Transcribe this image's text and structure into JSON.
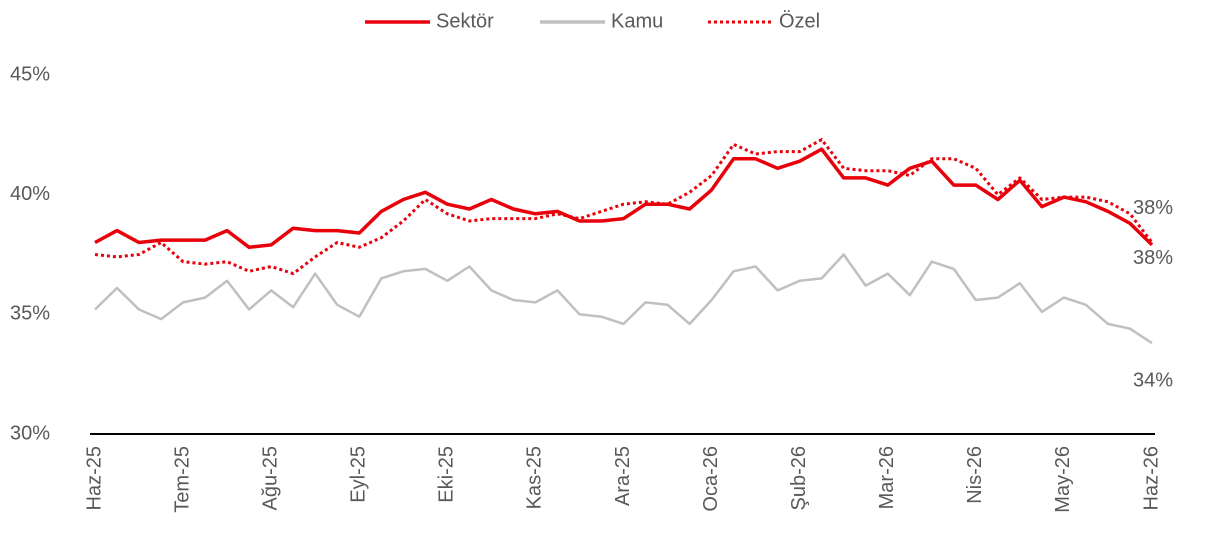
{
  "chart_data": {
    "type": "line",
    "categories": [
      "Haz-25",
      null,
      null,
      null,
      "Tem-25",
      null,
      null,
      null,
      "Ağu-25",
      null,
      null,
      null,
      "Eyl-25",
      null,
      null,
      null,
      "Eki-25",
      null,
      null,
      null,
      "Kas-25",
      null,
      null,
      null,
      "Ara-25",
      null,
      null,
      null,
      "Oca-26",
      null,
      null,
      null,
      "Şub-26",
      null,
      null,
      null,
      "Mar-26",
      null,
      null,
      null,
      "Nis-26",
      null,
      null,
      null,
      "May-26",
      null,
      null,
      null,
      "Haz-26"
    ],
    "ylim": [
      30,
      45
    ],
    "yticks": [
      {
        "value": 30,
        "label": "30%"
      },
      {
        "value": 35,
        "label": "35%"
      },
      {
        "value": 40,
        "label": "40%"
      },
      {
        "value": 45,
        "label": "45%"
      }
    ],
    "legend": "top",
    "series": [
      {
        "name": "Sektör",
        "color": "#e8000b",
        "style": "solid",
        "values": [
          38.0,
          38.5,
          38.0,
          38.1,
          38.1,
          38.1,
          38.5,
          37.8,
          37.9,
          38.6,
          38.5,
          38.5,
          38.4,
          39.3,
          39.8,
          40.1,
          39.6,
          39.4,
          39.8,
          39.4,
          39.2,
          39.3,
          38.9,
          38.9,
          39.0,
          39.6,
          39.6,
          39.4,
          40.2,
          41.5,
          41.5,
          41.1,
          41.4,
          41.9,
          40.7,
          40.7,
          40.4,
          41.1,
          41.4,
          40.4,
          40.4,
          39.8,
          40.6,
          39.5,
          39.9,
          39.7,
          39.3,
          38.8,
          37.9
        ],
        "value_labels": [
          null,
          null,
          null,
          null,
          null,
          null,
          null,
          null,
          null,
          null,
          null,
          null,
          null,
          null,
          null,
          null,
          null,
          null,
          null,
          null,
          null,
          null,
          null,
          null,
          null,
          null,
          null,
          null,
          null,
          null,
          null,
          null,
          null,
          null,
          null,
          null,
          null,
          null,
          null,
          null,
          null,
          null,
          null,
          null,
          null,
          null,
          null,
          null,
          "38%"
        ]
      },
      {
        "name": "Kamu",
        "color": "#c0c0c0",
        "style": "solid",
        "values": [
          35.2,
          36.1,
          35.2,
          34.8,
          35.5,
          35.7,
          36.4,
          35.2,
          36.0,
          35.3,
          36.7,
          35.4,
          34.9,
          36.5,
          36.8,
          36.9,
          36.4,
          37.0,
          36.0,
          35.6,
          35.5,
          36.0,
          35.0,
          34.9,
          34.6,
          35.5,
          35.4,
          34.6,
          35.6,
          36.8,
          37.0,
          36.0,
          36.4,
          36.5,
          37.5,
          36.2,
          36.7,
          35.8,
          37.2,
          36.9,
          35.6,
          35.7,
          36.3,
          35.1,
          35.7,
          35.4,
          34.6,
          34.4,
          33.8
        ],
        "value_labels": [
          null,
          null,
          null,
          null,
          null,
          null,
          null,
          null,
          null,
          null,
          null,
          null,
          null,
          null,
          null,
          null,
          null,
          null,
          null,
          null,
          null,
          null,
          null,
          null,
          null,
          null,
          null,
          null,
          null,
          null,
          null,
          null,
          null,
          null,
          null,
          null,
          null,
          null,
          null,
          null,
          null,
          null,
          null,
          null,
          null,
          null,
          null,
          null,
          "34%"
        ]
      },
      {
        "name": "Özel",
        "color": "#e8000b",
        "style": "dotted",
        "values": [
          37.5,
          37.4,
          37.5,
          38.0,
          37.2,
          37.1,
          37.2,
          36.8,
          37.0,
          36.7,
          37.4,
          38.0,
          37.8,
          38.2,
          38.9,
          39.8,
          39.2,
          38.9,
          39.0,
          39.0,
          39.0,
          39.2,
          39.0,
          39.3,
          39.6,
          39.7,
          39.6,
          40.1,
          40.8,
          42.1,
          41.7,
          41.8,
          41.8,
          42.3,
          41.1,
          41.0,
          41.0,
          40.8,
          41.5,
          41.5,
          41.1,
          40.0,
          40.7,
          39.8,
          39.9,
          39.9,
          39.7,
          39.2,
          38.0
        ],
        "value_labels": [
          null,
          null,
          null,
          null,
          null,
          null,
          null,
          null,
          null,
          null,
          null,
          null,
          null,
          null,
          null,
          null,
          null,
          null,
          null,
          null,
          null,
          null,
          null,
          null,
          null,
          null,
          null,
          null,
          null,
          null,
          null,
          null,
          null,
          null,
          null,
          null,
          null,
          null,
          null,
          null,
          null,
          null,
          null,
          null,
          null,
          null,
          null,
          null,
          "38%"
        ]
      }
    ]
  }
}
